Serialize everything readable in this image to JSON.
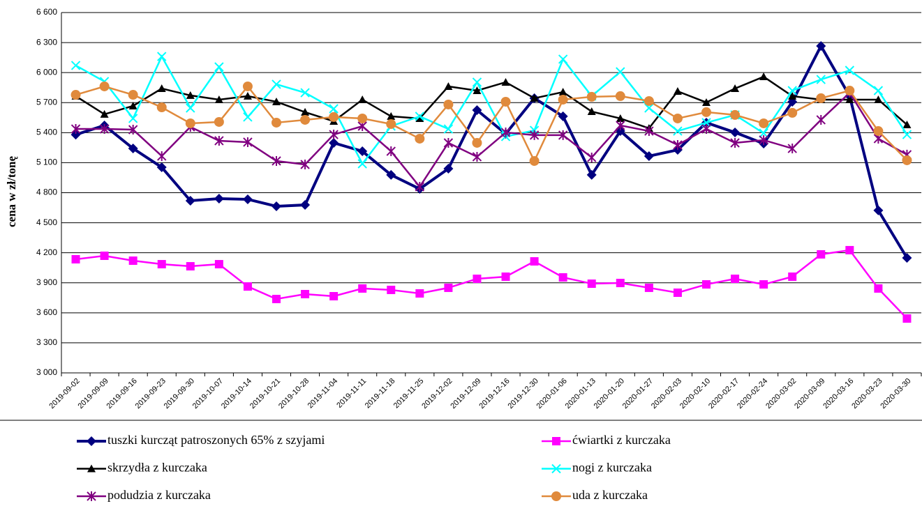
{
  "chart_data": {
    "type": "line",
    "y_label": "cena w zł/tonę",
    "categories": [
      "2019-09-02",
      "2019-09-09",
      "2019-09-16",
      "2019-09-23",
      "2019-09-30",
      "2019-10-07",
      "2019-10-14",
      "2019-10-21",
      "2019-10-28",
      "2019-11-04",
      "2019-11-11",
      "2019-11-18",
      "2019-11-25",
      "2019-12-02",
      "2019-12-09",
      "2019-12-16",
      "2019-12-30",
      "2020-01-06",
      "2020-01-13",
      "2020-01-20",
      "2020-01-27",
      "2020-02-03",
      "2020-02-10",
      "2020-02-17",
      "2020-02-24",
      "2020-03-02",
      "2020-03-09",
      "2020-03-16",
      "2020-03-23",
      "2020-03-30"
    ],
    "ylim": [
      3000,
      6600
    ],
    "yticks": [
      {
        "value": 3000,
        "label": "3 000"
      },
      {
        "value": 3300,
        "label": "3 300"
      },
      {
        "value": 3600,
        "label": "3 600"
      },
      {
        "value": 3900,
        "label": "3 900"
      },
      {
        "value": 4200,
        "label": "4 200"
      },
      {
        "value": 4500,
        "label": "4 500"
      },
      {
        "value": 4800,
        "label": "4 800"
      },
      {
        "value": 5100,
        "label": "5 100"
      },
      {
        "value": 5400,
        "label": "5 400"
      },
      {
        "value": 5700,
        "label": "5 700"
      },
      {
        "value": 6000,
        "label": "6 000"
      },
      {
        "value": 6300,
        "label": "6 300"
      },
      {
        "value": 6600,
        "label": "6 600"
      }
    ],
    "grid": true,
    "legend": "bottom",
    "series": [
      {
        "name": "tuszki kurcząt patroszonych 65% z szyjami",
        "color": "#000080",
        "marker": "diamond",
        "values": [
          5380,
          5472,
          5242,
          5054,
          4720,
          4741,
          4734,
          4664,
          4678,
          5298,
          5214,
          4978,
          4838,
          5040,
          5625,
          5388,
          5744,
          5563,
          4978,
          5416,
          5166,
          5228,
          5500,
          5402,
          5291,
          5709,
          6266,
          5765,
          4623,
          4149
        ]
      },
      {
        "name": "ćwiartki z kurczaka",
        "color": "#ff00ff",
        "marker": "square",
        "values": [
          4135,
          4170,
          4121,
          4086,
          4065,
          4086,
          3863,
          3738,
          3787,
          3766,
          3843,
          3829,
          3794,
          3850,
          3940,
          3961,
          4114,
          3954,
          3891,
          3898,
          3850,
          3801,
          3884,
          3940,
          3884,
          3961,
          4184,
          4226,
          3843,
          3543
        ]
      },
      {
        "name": "skrzydła z kurczaka",
        "color": "#000000",
        "marker": "triangle",
        "values": [
          5765,
          5584,
          5667,
          5841,
          5772,
          5730,
          5765,
          5709,
          5605,
          5514,
          5730,
          5563,
          5542,
          5862,
          5820,
          5904,
          5744,
          5806,
          5611,
          5542,
          5444,
          5813,
          5702,
          5841,
          5959,
          5765,
          5730,
          5730,
          5730,
          5479
        ]
      },
      {
        "name": "nogi z kurczaka",
        "color": "#00ffff",
        "marker": "x",
        "values": [
          6071,
          5911,
          5542,
          6161,
          5646,
          6057,
          5556,
          5883,
          5799,
          5639,
          5089,
          5465,
          5563,
          5437,
          5904,
          5361,
          5423,
          6134,
          5765,
          6008,
          5646,
          5416,
          5500,
          5577,
          5395,
          5820,
          5931,
          6022,
          5820,
          5381
        ]
      },
      {
        "name": "podudzia z kurczaka",
        "color": "#800080",
        "marker": "star",
        "values": [
          5437,
          5437,
          5430,
          5166,
          5458,
          5319,
          5305,
          5117,
          5082,
          5381,
          5465,
          5214,
          4859,
          5298,
          5159,
          5402,
          5375,
          5375,
          5152,
          5472,
          5416,
          5277,
          5437,
          5298,
          5326,
          5242,
          5528,
          5799,
          5340,
          5180
        ]
      },
      {
        "name": "uda z kurczaka",
        "color": "#e08a3c",
        "marker": "circle",
        "values": [
          5778,
          5862,
          5778,
          5653,
          5493,
          5507,
          5862,
          5500,
          5528,
          5556,
          5542,
          5486,
          5340,
          5681,
          5298,
          5709,
          5117,
          5730,
          5758,
          5765,
          5716,
          5542,
          5605,
          5577,
          5493,
          5598,
          5744,
          5820,
          5416,
          5124
        ]
      }
    ]
  }
}
